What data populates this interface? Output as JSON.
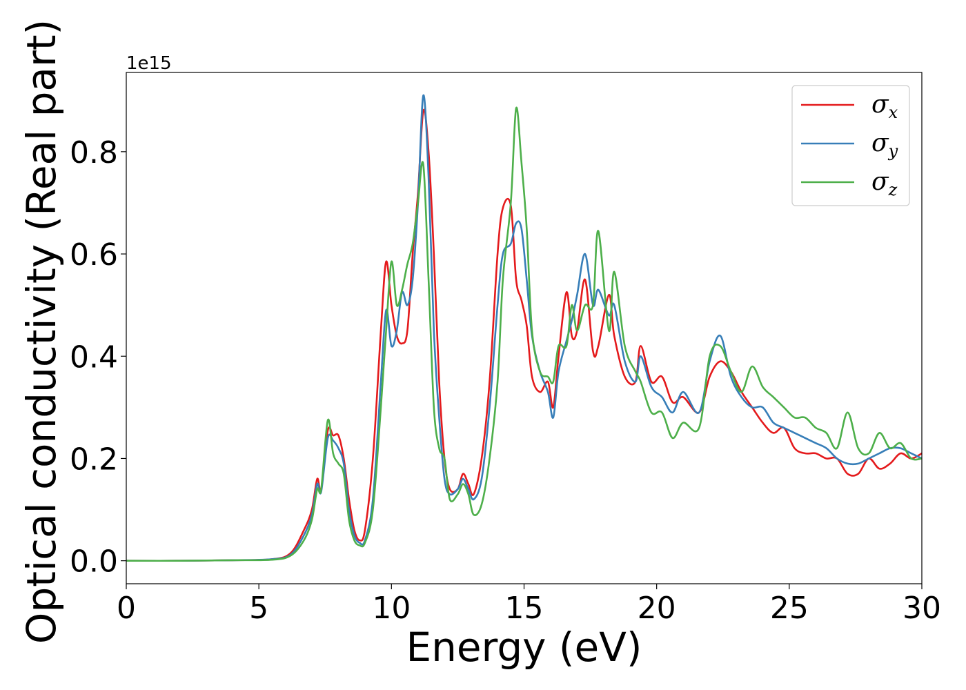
{
  "chart_data": {
    "type": "line",
    "xlabel": "Energy (eV)",
    "ylabel": "Optical conductivity (Real part)",
    "y_offset_label": "1e15",
    "xlim": [
      0,
      30
    ],
    "ylim": [
      -0.045,
      0.955
    ],
    "x_ticks": [
      0,
      5,
      10,
      15,
      20,
      25,
      30
    ],
    "x_tick_labels": [
      "0",
      "5",
      "10",
      "15",
      "20",
      "25",
      "30"
    ],
    "y_ticks": [
      0.0,
      0.2,
      0.4,
      0.6,
      0.8
    ],
    "y_tick_labels": [
      "0.0",
      "0.2",
      "0.4",
      "0.6",
      "0.8"
    ],
    "grid": false,
    "legend_position": "top-right",
    "series": [
      {
        "name": "σx",
        "legend_symbol": "σ",
        "legend_subscript": "x",
        "color": "#e41a1c",
        "points": [
          [
            0,
            0
          ],
          [
            2,
            0
          ],
          [
            4,
            0.001
          ],
          [
            5.5,
            0.003
          ],
          [
            6.2,
            0.015
          ],
          [
            6.7,
            0.06
          ],
          [
            7.0,
            0.1
          ],
          [
            7.2,
            0.16
          ],
          [
            7.35,
            0.14
          ],
          [
            7.6,
            0.255
          ],
          [
            7.8,
            0.245
          ],
          [
            8.0,
            0.245
          ],
          [
            8.2,
            0.2
          ],
          [
            8.4,
            0.12
          ],
          [
            8.6,
            0.06
          ],
          [
            8.8,
            0.04
          ],
          [
            9.0,
            0.06
          ],
          [
            9.3,
            0.2
          ],
          [
            9.6,
            0.45
          ],
          [
            9.8,
            0.585
          ],
          [
            10.0,
            0.5
          ],
          [
            10.2,
            0.44
          ],
          [
            10.4,
            0.425
          ],
          [
            10.6,
            0.45
          ],
          [
            10.8,
            0.6
          ],
          [
            11.0,
            0.72
          ],
          [
            11.2,
            0.88
          ],
          [
            11.4,
            0.8
          ],
          [
            11.6,
            0.6
          ],
          [
            11.8,
            0.35
          ],
          [
            12.0,
            0.2
          ],
          [
            12.2,
            0.14
          ],
          [
            12.5,
            0.14
          ],
          [
            12.7,
            0.17
          ],
          [
            12.9,
            0.15
          ],
          [
            13.1,
            0.13
          ],
          [
            13.4,
            0.2
          ],
          [
            13.7,
            0.35
          ],
          [
            14.0,
            0.6
          ],
          [
            14.2,
            0.69
          ],
          [
            14.5,
            0.695
          ],
          [
            14.7,
            0.55
          ],
          [
            14.9,
            0.51
          ],
          [
            15.1,
            0.46
          ],
          [
            15.3,
            0.36
          ],
          [
            15.6,
            0.33
          ],
          [
            15.9,
            0.35
          ],
          [
            16.1,
            0.3
          ],
          [
            16.3,
            0.4
          ],
          [
            16.6,
            0.525
          ],
          [
            16.8,
            0.44
          ],
          [
            17.0,
            0.45
          ],
          [
            17.3,
            0.55
          ],
          [
            17.6,
            0.41
          ],
          [
            17.8,
            0.42
          ],
          [
            18.2,
            0.52
          ],
          [
            18.4,
            0.44
          ],
          [
            18.8,
            0.36
          ],
          [
            19.2,
            0.35
          ],
          [
            19.4,
            0.42
          ],
          [
            19.8,
            0.35
          ],
          [
            20.2,
            0.36
          ],
          [
            20.6,
            0.31
          ],
          [
            21.0,
            0.32
          ],
          [
            21.6,
            0.29
          ],
          [
            22.0,
            0.36
          ],
          [
            22.4,
            0.39
          ],
          [
            22.8,
            0.37
          ],
          [
            23.2,
            0.33
          ],
          [
            23.6,
            0.3
          ],
          [
            24.0,
            0.27
          ],
          [
            24.4,
            0.25
          ],
          [
            24.8,
            0.26
          ],
          [
            25.2,
            0.22
          ],
          [
            25.6,
            0.21
          ],
          [
            26.0,
            0.21
          ],
          [
            26.4,
            0.2
          ],
          [
            26.8,
            0.2
          ],
          [
            27.2,
            0.17
          ],
          [
            27.6,
            0.17
          ],
          [
            28.0,
            0.2
          ],
          [
            28.4,
            0.18
          ],
          [
            28.8,
            0.19
          ],
          [
            29.2,
            0.21
          ],
          [
            29.6,
            0.2
          ],
          [
            30.0,
            0.21
          ]
        ]
      },
      {
        "name": "σy",
        "legend_symbol": "σ",
        "legend_subscript": "y",
        "color": "#377eb8",
        "points": [
          [
            0,
            0
          ],
          [
            2,
            0
          ],
          [
            4,
            0.001
          ],
          [
            5.5,
            0.003
          ],
          [
            6.2,
            0.012
          ],
          [
            6.7,
            0.05
          ],
          [
            7.0,
            0.09
          ],
          [
            7.2,
            0.15
          ],
          [
            7.35,
            0.135
          ],
          [
            7.6,
            0.24
          ],
          [
            7.8,
            0.235
          ],
          [
            8.0,
            0.22
          ],
          [
            8.2,
            0.19
          ],
          [
            8.4,
            0.1
          ],
          [
            8.6,
            0.05
          ],
          [
            8.8,
            0.035
          ],
          [
            9.0,
            0.04
          ],
          [
            9.3,
            0.12
          ],
          [
            9.6,
            0.35
          ],
          [
            9.8,
            0.49
          ],
          [
            10.0,
            0.42
          ],
          [
            10.2,
            0.45
          ],
          [
            10.4,
            0.525
          ],
          [
            10.6,
            0.5
          ],
          [
            10.8,
            0.55
          ],
          [
            11.0,
            0.7
          ],
          [
            11.2,
            0.91
          ],
          [
            11.4,
            0.75
          ],
          [
            11.6,
            0.45
          ],
          [
            11.8,
            0.28
          ],
          [
            12.0,
            0.16
          ],
          [
            12.2,
            0.13
          ],
          [
            12.5,
            0.14
          ],
          [
            12.7,
            0.16
          ],
          [
            12.9,
            0.14
          ],
          [
            13.1,
            0.12
          ],
          [
            13.4,
            0.16
          ],
          [
            13.7,
            0.3
          ],
          [
            14.0,
            0.5
          ],
          [
            14.2,
            0.6
          ],
          [
            14.5,
            0.62
          ],
          [
            14.7,
            0.66
          ],
          [
            14.9,
            0.65
          ],
          [
            15.1,
            0.55
          ],
          [
            15.3,
            0.44
          ],
          [
            15.6,
            0.37
          ],
          [
            15.9,
            0.33
          ],
          [
            16.1,
            0.28
          ],
          [
            16.3,
            0.37
          ],
          [
            16.6,
            0.43
          ],
          [
            16.8,
            0.47
          ],
          [
            17.0,
            0.52
          ],
          [
            17.3,
            0.6
          ],
          [
            17.6,
            0.5
          ],
          [
            17.8,
            0.53
          ],
          [
            18.2,
            0.48
          ],
          [
            18.4,
            0.5
          ],
          [
            18.8,
            0.39
          ],
          [
            19.2,
            0.35
          ],
          [
            19.4,
            0.4
          ],
          [
            19.8,
            0.34
          ],
          [
            20.2,
            0.32
          ],
          [
            20.6,
            0.29
          ],
          [
            21.0,
            0.33
          ],
          [
            21.6,
            0.29
          ],
          [
            22.0,
            0.39
          ],
          [
            22.4,
            0.44
          ],
          [
            22.8,
            0.36
          ],
          [
            23.2,
            0.32
          ],
          [
            23.6,
            0.3
          ],
          [
            24.0,
            0.3
          ],
          [
            24.4,
            0.27
          ],
          [
            24.8,
            0.26
          ],
          [
            25.2,
            0.25
          ],
          [
            25.6,
            0.24
          ],
          [
            26.0,
            0.23
          ],
          [
            26.4,
            0.22
          ],
          [
            26.8,
            0.2
          ],
          [
            27.2,
            0.19
          ],
          [
            27.6,
            0.19
          ],
          [
            28.0,
            0.2
          ],
          [
            28.4,
            0.21
          ],
          [
            28.8,
            0.22
          ],
          [
            29.2,
            0.22
          ],
          [
            29.6,
            0.21
          ],
          [
            30.0,
            0.2
          ]
        ]
      },
      {
        "name": "σz",
        "legend_symbol": "σ",
        "legend_subscript": "z",
        "color": "#4daf4a",
        "points": [
          [
            0,
            0
          ],
          [
            2,
            0
          ],
          [
            4,
            0.001
          ],
          [
            5.5,
            0.002
          ],
          [
            6.2,
            0.01
          ],
          [
            6.7,
            0.04
          ],
          [
            7.0,
            0.08
          ],
          [
            7.2,
            0.14
          ],
          [
            7.35,
            0.14
          ],
          [
            7.6,
            0.275
          ],
          [
            7.8,
            0.21
          ],
          [
            8.0,
            0.19
          ],
          [
            8.2,
            0.17
          ],
          [
            8.4,
            0.08
          ],
          [
            8.6,
            0.04
          ],
          [
            8.8,
            0.03
          ],
          [
            9.0,
            0.035
          ],
          [
            9.3,
            0.1
          ],
          [
            9.6,
            0.3
          ],
          [
            9.8,
            0.45
          ],
          [
            10.0,
            0.585
          ],
          [
            10.2,
            0.5
          ],
          [
            10.4,
            0.53
          ],
          [
            10.6,
            0.58
          ],
          [
            10.8,
            0.62
          ],
          [
            11.0,
            0.7
          ],
          [
            11.2,
            0.775
          ],
          [
            11.4,
            0.55
          ],
          [
            11.6,
            0.3
          ],
          [
            11.8,
            0.22
          ],
          [
            12.0,
            0.2
          ],
          [
            12.2,
            0.12
          ],
          [
            12.5,
            0.13
          ],
          [
            12.7,
            0.15
          ],
          [
            12.9,
            0.13
          ],
          [
            13.1,
            0.09
          ],
          [
            13.4,
            0.11
          ],
          [
            13.7,
            0.2
          ],
          [
            14.0,
            0.35
          ],
          [
            14.2,
            0.55
          ],
          [
            14.5,
            0.7
          ],
          [
            14.7,
            0.885
          ],
          [
            14.9,
            0.78
          ],
          [
            15.1,
            0.65
          ],
          [
            15.3,
            0.45
          ],
          [
            15.6,
            0.37
          ],
          [
            15.9,
            0.36
          ],
          [
            16.1,
            0.35
          ],
          [
            16.3,
            0.42
          ],
          [
            16.6,
            0.42
          ],
          [
            16.8,
            0.5
          ],
          [
            17.0,
            0.45
          ],
          [
            17.3,
            0.5
          ],
          [
            17.6,
            0.5
          ],
          [
            17.8,
            0.645
          ],
          [
            18.2,
            0.45
          ],
          [
            18.4,
            0.565
          ],
          [
            18.8,
            0.42
          ],
          [
            19.2,
            0.37
          ],
          [
            19.4,
            0.35
          ],
          [
            19.8,
            0.29
          ],
          [
            20.2,
            0.29
          ],
          [
            20.6,
            0.24
          ],
          [
            21.0,
            0.27
          ],
          [
            21.6,
            0.26
          ],
          [
            22.0,
            0.4
          ],
          [
            22.4,
            0.42
          ],
          [
            22.8,
            0.37
          ],
          [
            23.2,
            0.33
          ],
          [
            23.6,
            0.38
          ],
          [
            24.0,
            0.34
          ],
          [
            24.4,
            0.32
          ],
          [
            24.8,
            0.3
          ],
          [
            25.2,
            0.28
          ],
          [
            25.6,
            0.28
          ],
          [
            26.0,
            0.26
          ],
          [
            26.4,
            0.25
          ],
          [
            26.8,
            0.22
          ],
          [
            27.2,
            0.29
          ],
          [
            27.6,
            0.22
          ],
          [
            28.0,
            0.21
          ],
          [
            28.4,
            0.25
          ],
          [
            28.8,
            0.22
          ],
          [
            29.2,
            0.23
          ],
          [
            29.6,
            0.2
          ],
          [
            30.0,
            0.2
          ]
        ]
      }
    ]
  }
}
